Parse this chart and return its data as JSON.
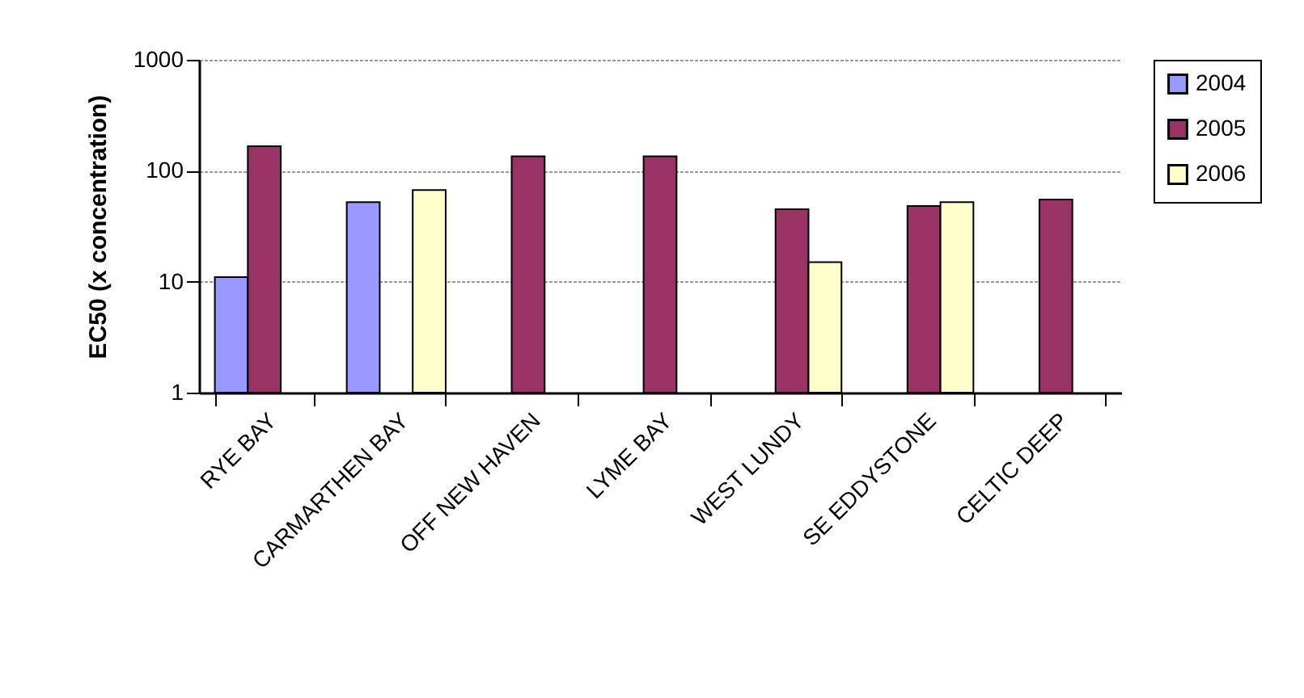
{
  "chart_data": {
    "type": "bar",
    "ylabel": "EC50 (x concentration)",
    "categories": [
      "RYE BAY",
      "CARMARTHEN BAY",
      "OFF NEW HAVEN",
      "LYME BAY",
      "WEST LUNDY",
      "SE EDDYSTONE",
      "CELTIC DEEP"
    ],
    "series": [
      {
        "name": "2004",
        "color": "#9999ff",
        "values": [
          11,
          52,
          null,
          null,
          null,
          null,
          null
        ]
      },
      {
        "name": "2005",
        "color": "#993366",
        "values": [
          166,
          null,
          135,
          135,
          45,
          48,
          55
        ]
      },
      {
        "name": "2006",
        "color": "#ffffcc",
        "values": [
          null,
          67,
          null,
          null,
          15,
          52,
          null
        ]
      }
    ],
    "log": "y",
    "ylim": [
      1,
      1000
    ],
    "yticks": [
      1,
      10,
      100,
      1000
    ],
    "grid": "y",
    "legend": "right"
  }
}
